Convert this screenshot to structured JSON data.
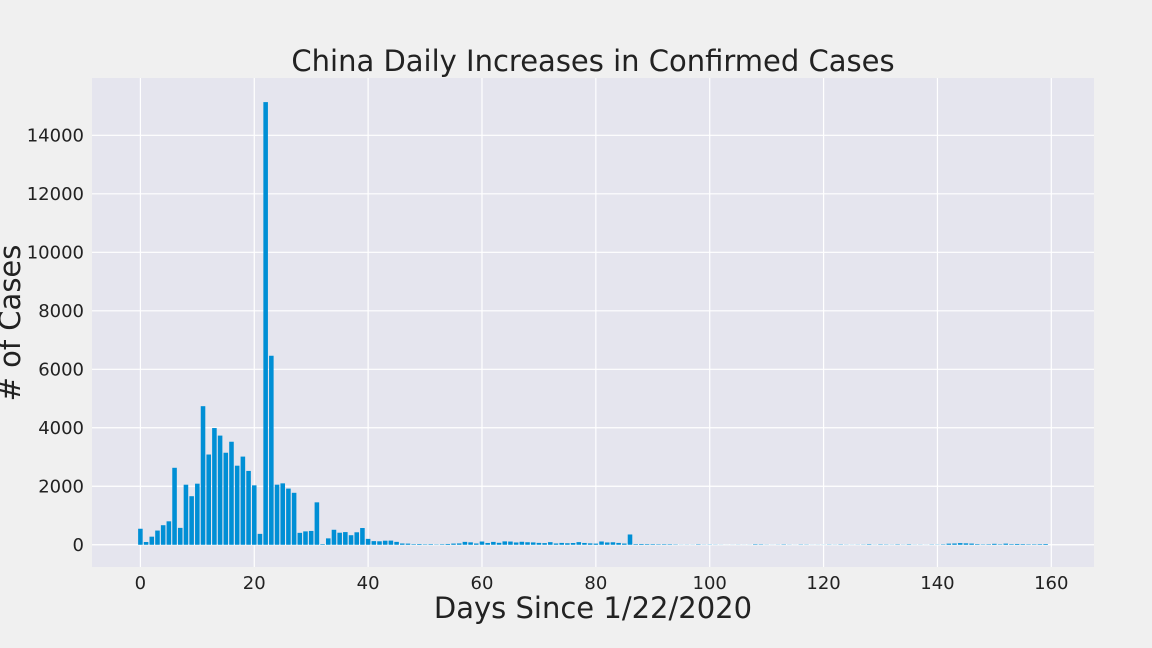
{
  "chart_data": {
    "type": "bar",
    "title": "China Daily Increases in Confirmed Cases",
    "xlabel": "Days Since 1/22/2020",
    "ylabel": "# of Cases",
    "xlim": [
      -8.5,
      167.5
    ],
    "ylim": [
      -760,
      15960
    ],
    "x_ticks": [
      0,
      20,
      40,
      60,
      80,
      100,
      120,
      140,
      160
    ],
    "y_ticks": [
      0,
      2000,
      4000,
      6000,
      8000,
      10000,
      12000,
      14000
    ],
    "grid": true,
    "legend": "none",
    "bar_color": "#008fd5",
    "x_start": 0,
    "values": [
      548,
      95,
      277,
      486,
      669,
      802,
      2632,
      578,
      2054,
      1661,
      2089,
      4739,
      3086,
      3991,
      3733,
      3147,
      3523,
      2704,
      3015,
      2525,
      2032,
      373,
      15136,
      6463,
      2055,
      2100,
      1921,
      1777,
      408,
      458,
      473,
      1451,
      21,
      219,
      513,
      412,
      434,
      327,
      427,
      573,
      202,
      125,
      119,
      139,
      143,
      99,
      44,
      40,
      19,
      24,
      15,
      20,
      11,
      18,
      27,
      41,
      46,
      99,
      83,
      44,
      111,
      62,
      98,
      67,
      116,
      110,
      79,
      102,
      86,
      81,
      64,
      57,
      89,
      45,
      63,
      52,
      60,
      90,
      62,
      48,
      40,
      112,
      79,
      86,
      63,
      42,
      352,
      21,
      25,
      21,
      20,
      16,
      18,
      17,
      11,
      5,
      6,
      5,
      14,
      6,
      8,
      6,
      4,
      2,
      3,
      5,
      3,
      4,
      16,
      13,
      6,
      3,
      6,
      12,
      6,
      3,
      10,
      8,
      3,
      4,
      4,
      8,
      5,
      11,
      6,
      4,
      6,
      8,
      17,
      5,
      13,
      10,
      6,
      13,
      6,
      15,
      5,
      6,
      3,
      9,
      7,
      14,
      39,
      44,
      57,
      49,
      41,
      21,
      13,
      17,
      33,
      15,
      39,
      20,
      27,
      21,
      15,
      16,
      20,
      25
    ]
  }
}
